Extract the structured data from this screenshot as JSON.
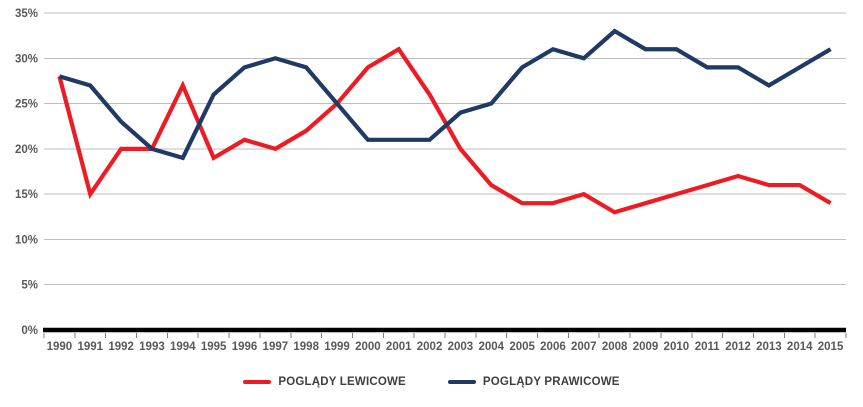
{
  "chart_data": {
    "type": "line",
    "title": "",
    "xlabel": "",
    "ylabel": "",
    "categories": [
      "1990",
      "1991",
      "1992",
      "1993",
      "1994",
      "1995",
      "1996",
      "1997",
      "1998",
      "1999",
      "2000",
      "2001",
      "2002",
      "2003",
      "2004",
      "2005",
      "2006",
      "2007",
      "2008",
      "2009",
      "2010",
      "2011",
      "2012",
      "2013",
      "2014",
      "2015"
    ],
    "series": [
      {
        "id": "lewicowe",
        "name": "POGLĄDY LEWICOWE",
        "color": "#ed1c24",
        "values": [
          28,
          15,
          20,
          20,
          27,
          19,
          21,
          20,
          22,
          25,
          29,
          31,
          26,
          20,
          16,
          14,
          14,
          15,
          13,
          14,
          15,
          16,
          17,
          16,
          16,
          14
        ]
      },
      {
        "id": "prawicowe",
        "name": "POGLĄDY PRAWICOWE",
        "color": "#1f3a64",
        "values": [
          28,
          27,
          23,
          20,
          19,
          26,
          29,
          30,
          29,
          25,
          21,
          21,
          21,
          24,
          25,
          29,
          31,
          30,
          33,
          31,
          31,
          29,
          29,
          27,
          29,
          31
        ]
      }
    ],
    "ylim": [
      0,
      35
    ],
    "y_tick_step": 5,
    "y_ticks": [
      "0%",
      "5%",
      "10%",
      "15%",
      "20%",
      "25%",
      "30%",
      "35%"
    ],
    "grid": true,
    "legend_position": "bottom",
    "gridline_color": "#bfbfbf",
    "axis_line_color": "#000000",
    "tick_color": "#7f7f7f",
    "label_color": "#595959"
  }
}
